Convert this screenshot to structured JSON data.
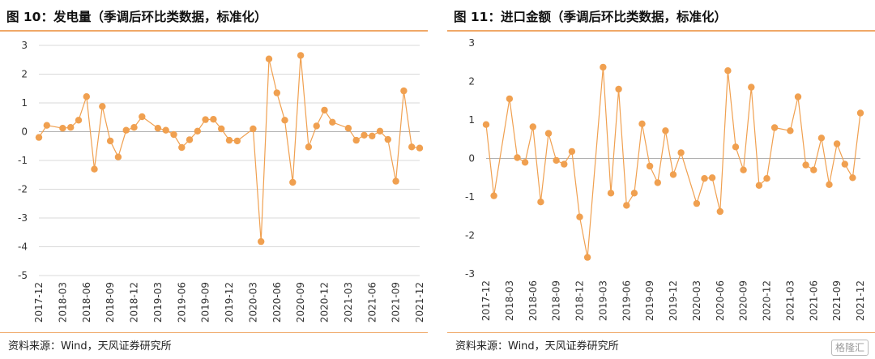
{
  "panels": [
    {
      "title": "图 10：发电量（季调后环比类数据，标准化）",
      "source": "资料来源：Wind，天风证券研究所"
    },
    {
      "title": "图 11：进口金额（季调后环比类数据，标准化）",
      "source": "资料来源：Wind，天风证券研究所"
    }
  ],
  "watermark": "格隆汇",
  "colors": {
    "series": "#f0a050",
    "rule": "#f0a868",
    "grid": "#d9d9d9",
    "axis": "#b0b0b0"
  },
  "chart_data": [
    {
      "type": "line",
      "title": "图 10：发电量（季调后环比类数据，标准化）",
      "ylim": [
        -5,
        3
      ],
      "yticks": [
        3,
        2,
        1,
        0,
        -1,
        -2,
        -3,
        -4,
        -5
      ],
      "xtick_labels": [
        "2017-12",
        "2018-03",
        "2018-06",
        "2018-09",
        "2018-12",
        "2019-03",
        "2019-06",
        "2019-09",
        "2019-12",
        "2020-03",
        "2020-06",
        "2020-09",
        "2020-12",
        "2021-03",
        "2021-06",
        "2021-09",
        "2021-12"
      ],
      "grid": "horizontal",
      "markers": true,
      "x": [
        "2017-12",
        "2018-01",
        "2018-02",
        "2018-03",
        "2018-04",
        "2018-05",
        "2018-06",
        "2018-07",
        "2018-08",
        "2018-09",
        "2018-10",
        "2018-11",
        "2018-12",
        "2019-01",
        "2019-02",
        "2019-03",
        "2019-04",
        "2019-05",
        "2019-06",
        "2019-07",
        "2019-08",
        "2019-09",
        "2019-10",
        "2019-11",
        "2019-12",
        "2020-01",
        "2020-02",
        "2020-03",
        "2020-04",
        "2020-05",
        "2020-06",
        "2020-07",
        "2020-08",
        "2020-09",
        "2020-10",
        "2020-11",
        "2020-12",
        "2021-01",
        "2021-02",
        "2021-03",
        "2021-04",
        "2021-05",
        "2021-06",
        "2021-07",
        "2021-08",
        "2021-09",
        "2021-10",
        "2021-11",
        "2021-12"
      ],
      "values": [
        -0.2,
        0.22,
        null,
        0.12,
        0.15,
        0.4,
        1.22,
        -1.3,
        0.88,
        -0.32,
        -0.88,
        0.05,
        0.15,
        0.52,
        null,
        0.12,
        0.05,
        -0.1,
        -0.55,
        -0.28,
        0.02,
        0.42,
        0.43,
        0.1,
        -0.3,
        -0.32,
        null,
        0.1,
        -3.82,
        2.53,
        1.35,
        0.4,
        -1.76,
        2.65,
        -0.53,
        0.2,
        0.75,
        0.33,
        null,
        0.12,
        -0.3,
        -0.12,
        -0.15,
        0.02,
        -0.27,
        -1.72,
        1.42,
        -0.53,
        -0.57
      ]
    },
    {
      "type": "line",
      "title": "图 11：进口金额（季调后环比类数据，标准化）",
      "ylim": [
        -3,
        3
      ],
      "yticks": [
        3,
        2,
        1,
        0,
        -1,
        -2,
        -3
      ],
      "xtick_labels": [
        "2017-12",
        "2018-03",
        "2018-06",
        "2018-09",
        "2018-12",
        "2019-03",
        "2019-06",
        "2019-09",
        "2019-12",
        "2020-03",
        "2020-06",
        "2020-09",
        "2020-12",
        "2021-03",
        "2021-06",
        "2021-09",
        "2021-12"
      ],
      "grid": "none",
      "markers": true,
      "x": [
        "2017-12",
        "2018-01",
        "2018-02",
        "2018-03",
        "2018-04",
        "2018-05",
        "2018-06",
        "2018-07",
        "2018-08",
        "2018-09",
        "2018-10",
        "2018-11",
        "2018-12",
        "2019-01",
        "2019-02",
        "2019-03",
        "2019-04",
        "2019-05",
        "2019-06",
        "2019-07",
        "2019-08",
        "2019-09",
        "2019-10",
        "2019-11",
        "2019-12",
        "2020-01",
        "2020-02",
        "2020-03",
        "2020-04",
        "2020-05",
        "2020-06",
        "2020-07",
        "2020-08",
        "2020-09",
        "2020-10",
        "2020-11",
        "2020-12",
        "2021-01",
        "2021-02",
        "2021-03",
        "2021-04",
        "2021-05",
        "2021-06",
        "2021-07",
        "2021-08",
        "2021-09",
        "2021-10",
        "2021-11",
        "2021-12"
      ],
      "values": [
        0.88,
        -0.97,
        null,
        1.55,
        0.02,
        -0.1,
        0.82,
        -1.13,
        0.65,
        -0.05,
        -0.15,
        0.18,
        -1.52,
        -2.57,
        null,
        2.37,
        -0.9,
        1.8,
        -1.22,
        -0.9,
        0.9,
        -0.2,
        -0.63,
        0.72,
        -0.42,
        0.15,
        null,
        -1.17,
        -0.52,
        -0.5,
        -1.38,
        2.28,
        0.3,
        -0.3,
        1.85,
        -0.7,
        -0.52,
        0.8,
        null,
        0.72,
        1.6,
        -0.17,
        -0.3,
        0.53,
        -0.68,
        0.38,
        -0.15,
        -0.5,
        1.18
      ]
    }
  ]
}
